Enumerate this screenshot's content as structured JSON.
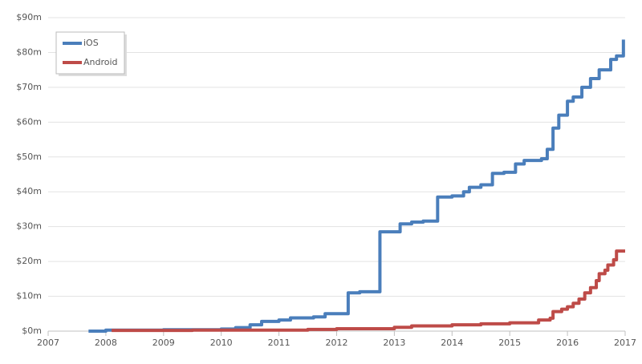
{
  "chart_data": {
    "type": "step-line",
    "xlim": [
      2007,
      2017
    ],
    "xticks": [
      2007,
      2008,
      2009,
      2010,
      2011,
      2012,
      2013,
      2014,
      2015,
      2016,
      2017
    ],
    "ylim": [
      0,
      90
    ],
    "yticks": [
      {
        "value": 0,
        "label": "$0m"
      },
      {
        "value": 10,
        "label": "$10m"
      },
      {
        "value": 20,
        "label": "$20m"
      },
      {
        "value": 30,
        "label": "$30m"
      },
      {
        "value": 40,
        "label": "$40m"
      },
      {
        "value": 50,
        "label": "$50m"
      },
      {
        "value": 60,
        "label": "$60m"
      },
      {
        "value": 70,
        "label": "$70m"
      },
      {
        "value": 80,
        "label": "$80m"
      },
      {
        "value": 90,
        "label": "$90m"
      }
    ],
    "grid": true,
    "legend": "top-left",
    "series": [
      {
        "name": "iOS",
        "color": "#4a7ebb",
        "x": [
          2007.7,
          2008.0,
          2009.0,
          2010.0,
          2010.25,
          2010.5,
          2010.7,
          2011.0,
          2011.2,
          2011.6,
          2011.8,
          2012.2,
          2012.4,
          2012.75,
          2013.1,
          2013.3,
          2013.5,
          2013.75,
          2014.0,
          2014.2,
          2014.3,
          2014.5,
          2014.7,
          2014.9,
          2015.1,
          2015.25,
          2015.55,
          2015.65,
          2015.75,
          2015.85,
          2016.0,
          2016.1,
          2016.25,
          2016.4,
          2016.55,
          2016.75,
          2016.85,
          2016.97
        ],
        "values": [
          0,
          0.3,
          0.4,
          0.6,
          1.0,
          1.8,
          2.8,
          3.2,
          3.8,
          4.1,
          5.0,
          11.0,
          11.3,
          28.5,
          30.8,
          31.3,
          31.6,
          38.5,
          38.8,
          40.0,
          41.3,
          42.0,
          45.3,
          45.6,
          48.0,
          49.0,
          49.5,
          52.2,
          58.3,
          62.0,
          66.0,
          67.2,
          70.0,
          72.5,
          75.0,
          78.0,
          79.0,
          83.7
        ]
      },
      {
        "name": "Android",
        "color": "#be4b48",
        "x": [
          2008.1,
          2009.5,
          2010.5,
          2011.5,
          2012.0,
          2013.0,
          2013.3,
          2014.0,
          2014.5,
          2015.0,
          2015.5,
          2015.7,
          2015.75,
          2015.9,
          2016.0,
          2016.1,
          2016.2,
          2016.3,
          2016.4,
          2016.5,
          2016.55,
          2016.65,
          2016.7,
          2016.8,
          2016.85,
          2017.0
        ],
        "values": [
          0.2,
          0.3,
          0.3,
          0.5,
          0.7,
          1.1,
          1.5,
          1.8,
          2.1,
          2.4,
          3.2,
          3.7,
          5.6,
          6.3,
          7.0,
          8.0,
          9.2,
          11.0,
          12.5,
          14.5,
          16.5,
          17.5,
          19.0,
          20.5,
          23.0,
          23.0
        ]
      }
    ]
  }
}
